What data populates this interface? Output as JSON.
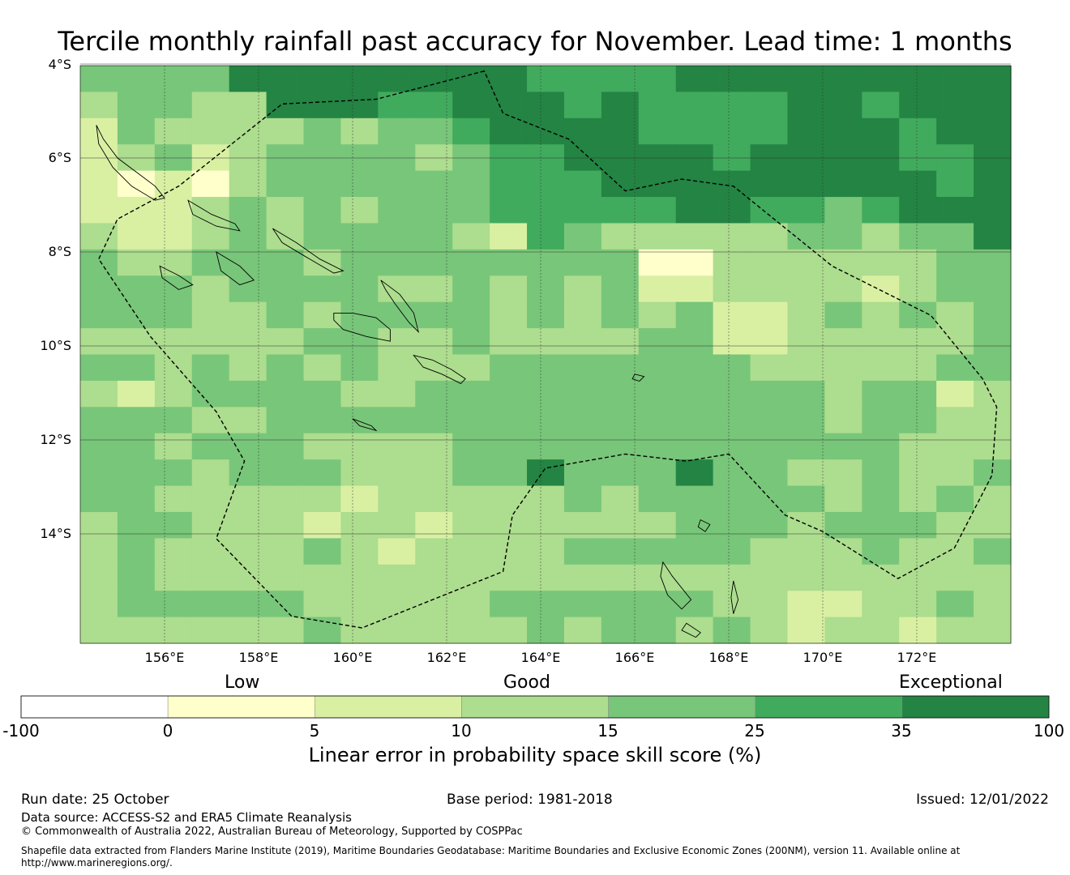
{
  "title": "Tercile monthly rainfall past accuracy for November. Lead time: 1 months",
  "map": {
    "lat_labels": [
      "4°S",
      "6°S",
      "8°S",
      "10°S",
      "12°S",
      "14°S"
    ],
    "lon_labels": [
      "156°E",
      "158°E",
      "160°E",
      "162°E",
      "164°E",
      "166°E",
      "168°E",
      "170°E",
      "172°E"
    ],
    "lon_range": [
      154.2,
      174.0
    ],
    "lat_range": [
      -16.3,
      -4.0
    ],
    "skill_grid": [
      "3333555666664777666666666",
      "2332255544566767777667666",
      "1322223233456667777666766",
      "1231233332344566676666776",
      "1010233333344455566655676",
      "1112323233344444554434666",
      "2112323333214322222332336",
      "3223332333333330022222233",
      "3332333322323231122221233",
      "3332232333323232311232323",
      "2222223322322223311222223",
      "3323232322233333332222233",
      "2123333223333333333323312",
      "3332233333333333333323322",
      "3323332222333333333333222",
      "3332333222335333533223223",
      "3322222122222323333323232",
      "2332221221222222333233322",
      "2322223212222333332223223",
      "2322222222222222222222222",
      "2333332222233333322112232",
      "2222223222223233232122122"
    ],
    "skill_legend": {
      "0": "#ffffcc",
      "1": "#d9f0a3",
      "2": "#addd8e",
      "3": "#78c679",
      "4": "#41ab5d",
      "5": "#238443",
      "6": "#238443",
      "7": "#41ab5d"
    },
    "eez_boundary": [
      [
        162.8,
        -4.15
      ],
      [
        160.5,
        -4.75
      ],
      [
        158.5,
        -4.85
      ],
      [
        156.3,
        -6.6
      ],
      [
        155.0,
        -7.3
      ],
      [
        154.6,
        -8.15
      ],
      [
        155.7,
        -9.8
      ],
      [
        157.1,
        -11.4
      ],
      [
        157.7,
        -12.45
      ],
      [
        157.1,
        -14.1
      ],
      [
        158.7,
        -15.75
      ],
      [
        160.2,
        -16.0
      ],
      [
        163.2,
        -14.8
      ],
      [
        163.4,
        -13.6
      ],
      [
        164.1,
        -12.6
      ],
      [
        165.8,
        -12.3
      ],
      [
        167.1,
        -12.45
      ],
      [
        168.0,
        -12.3
      ],
      [
        169.2,
        -13.6
      ],
      [
        170.0,
        -13.95
      ],
      [
        171.6,
        -14.95
      ],
      [
        172.8,
        -14.3
      ],
      [
        173.6,
        -12.75
      ],
      [
        173.7,
        -11.3
      ],
      [
        173.4,
        -10.7
      ],
      [
        172.3,
        -9.35
      ],
      [
        170.2,
        -8.3
      ],
      [
        168.1,
        -6.6
      ],
      [
        167.0,
        -6.45
      ],
      [
        165.8,
        -6.7
      ],
      [
        164.6,
        -5.6
      ],
      [
        163.2,
        -5.05
      ]
    ]
  },
  "colorbar": {
    "category_labels": [
      "Low",
      "Good",
      "Exceptional"
    ],
    "ticks": [
      "-100",
      "0",
      "5",
      "10",
      "15",
      "25",
      "35",
      "100"
    ],
    "colors": [
      "#ffffff",
      "#ffffcc",
      "#d9f0a3",
      "#addd8e",
      "#78c679",
      "#41ab5d",
      "#238443"
    ],
    "title": "Linear error in probability space skill score (%)"
  },
  "footer": {
    "run_date": "Run date: 25 October",
    "base_period": "Base period: 1981-2018",
    "issued": "Issued: 12/01/2022",
    "data_source": "Data source: ACCESS-S2 and ERA5 Climate Reanalysis",
    "copyright": "© Commonwealth of Australia 2022, Australian Bureau of Meteorology, Supported by COSPPac",
    "shapefile": "Shapefile data extracted from Flanders Marine Institute (2019), Maritime Boundaries Geodatabase: Maritime Boundaries and Exclusive Economic Zones (200NM), version 11. Available online at",
    "shapefile_url": "http://www.marineregions.org/."
  }
}
